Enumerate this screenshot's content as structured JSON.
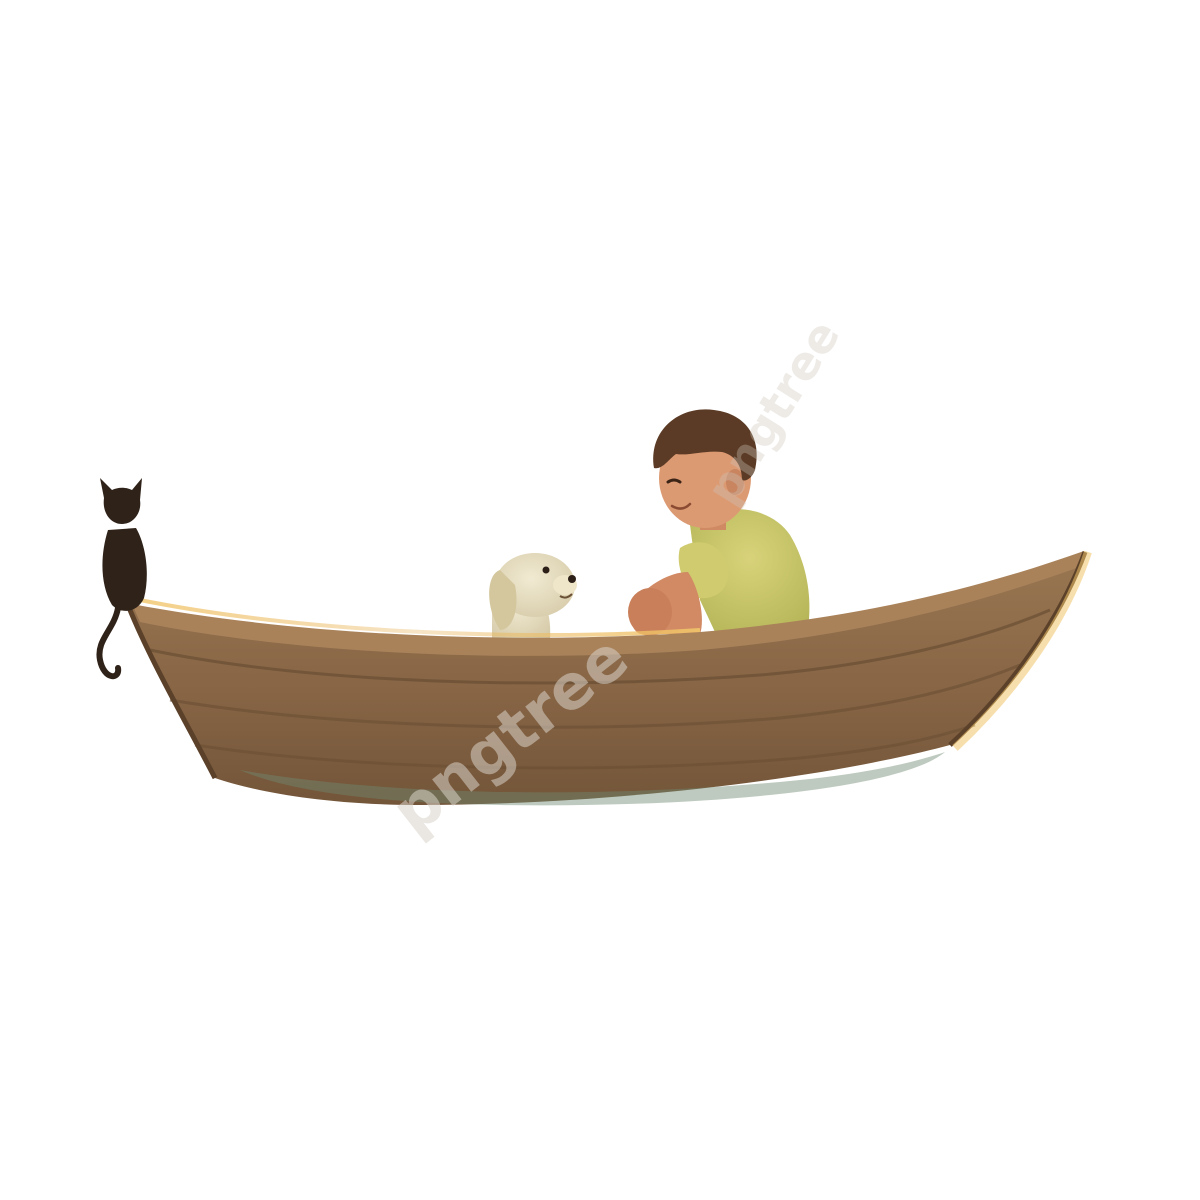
{
  "scene": {
    "subjects": [
      "boy",
      "dog",
      "cat",
      "wooden-boat"
    ],
    "watermark": {
      "text": "pngtree",
      "secondary_text": "pngtree"
    },
    "colors": {
      "background": "#ffffff",
      "boat_wood": "#8a6a48",
      "boat_wood_dark": "#6e5236",
      "boat_rim": "#a07a52",
      "shirt": "#c9c86a",
      "hair": "#5a3a24",
      "skin": "#d9956e",
      "dog": "#e6dcbf",
      "cat": "#2e211a",
      "glow": "#f3c96b"
    }
  }
}
